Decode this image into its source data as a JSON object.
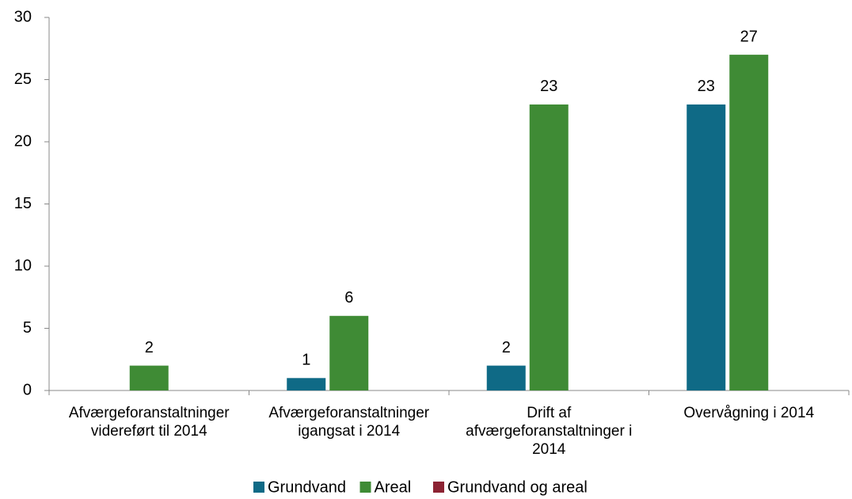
{
  "chart_data": {
    "type": "bar",
    "categories": [
      "Afværgeforanstaltninger videreført til 2014",
      "Afværgeforanstaltninger igangsat i 2014",
      "Drift af afværgeforanstaltninger i 2014",
      "Overvågning i 2014"
    ],
    "series": [
      {
        "name": "Grundvand",
        "color": "#0f6a86",
        "values": [
          null,
          1,
          2,
          23
        ]
      },
      {
        "name": "Areal",
        "color": "#3f8b35",
        "values": [
          2,
          6,
          23,
          27
        ]
      },
      {
        "name": "Grundvand og areal",
        "color": "#8c2333",
        "values": [
          null,
          null,
          null,
          null
        ]
      }
    ],
    "ylim": [
      0,
      30
    ],
    "yticks": [
      0,
      5,
      10,
      15,
      20,
      25,
      30
    ],
    "grid": false,
    "legend": "bottom"
  }
}
